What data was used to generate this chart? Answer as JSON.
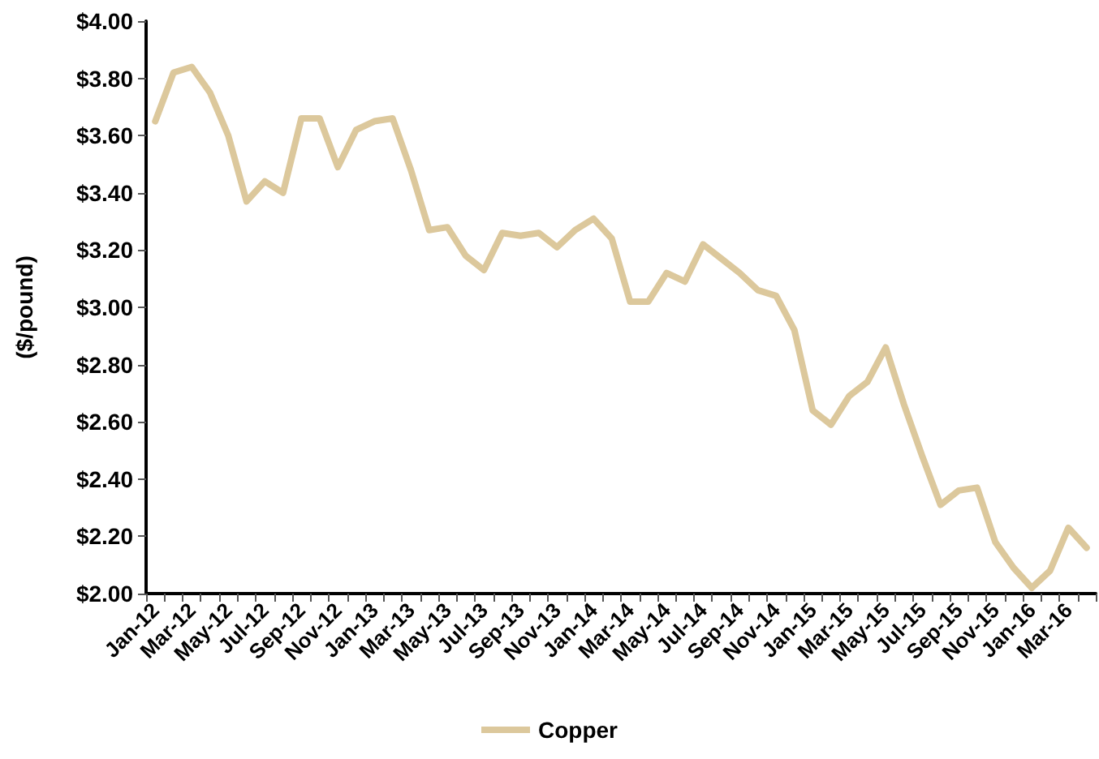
{
  "chart_data": {
    "type": "line",
    "ylabel": "($/pound)",
    "categories": [
      "Jan-12",
      null,
      "Mar-12",
      null,
      "May-12",
      null,
      "Jul-12",
      null,
      "Sep-12",
      null,
      "Nov-12",
      null,
      "Jan-13",
      null,
      "Mar-13",
      null,
      "May-13",
      null,
      "Jul-13",
      null,
      "Sep-13",
      null,
      "Nov-13",
      null,
      "Jan-14",
      null,
      "Mar-14",
      null,
      "May-14",
      null,
      "Jul-14",
      null,
      "Sep-14",
      null,
      "Nov-14",
      null,
      "Jan-15",
      null,
      "Mar-15",
      null,
      "May-15",
      null,
      "Jul-15",
      null,
      "Sep-15",
      null,
      "Nov-15",
      null,
      "Jan-16",
      null,
      "Mar-16",
      null
    ],
    "series": [
      {
        "name": "Copper",
        "color": "#dcc89c",
        "values": [
          3.65,
          3.82,
          3.84,
          3.75,
          3.6,
          3.37,
          3.44,
          3.4,
          3.66,
          3.66,
          3.49,
          3.62,
          3.65,
          3.66,
          3.48,
          3.27,
          3.28,
          3.18,
          3.13,
          3.26,
          3.25,
          3.26,
          3.21,
          3.27,
          3.31,
          3.24,
          3.02,
          3.02,
          3.12,
          3.09,
          3.22,
          3.17,
          3.12,
          3.06,
          3.04,
          2.92,
          2.64,
          2.59,
          2.69,
          2.74,
          2.86,
          2.66,
          2.48,
          2.31,
          2.36,
          2.37,
          2.18,
          2.09,
          2.02,
          2.08,
          2.23,
          2.16
        ]
      }
    ],
    "ylim": [
      2,
      4
    ],
    "yticks": [
      {
        "value": 2,
        "label": "$2.00"
      },
      {
        "value": 2.2,
        "label": "$2.20"
      },
      {
        "value": 2.4,
        "label": "$2.40"
      },
      {
        "value": 2.6,
        "label": "$2.60"
      },
      {
        "value": 2.8,
        "label": "$2.80"
      },
      {
        "value": 3,
        "label": "$3.00"
      },
      {
        "value": 3.2,
        "label": "$3.20"
      },
      {
        "value": 3.4,
        "label": "$3.40"
      },
      {
        "value": 3.6,
        "label": "$3.60"
      },
      {
        "value": 3.8,
        "label": "$3.80"
      },
      {
        "value": 4,
        "label": "$4.00"
      }
    ],
    "grid": false,
    "legend": "bottom",
    "marker": "none",
    "line_style": "solid"
  }
}
